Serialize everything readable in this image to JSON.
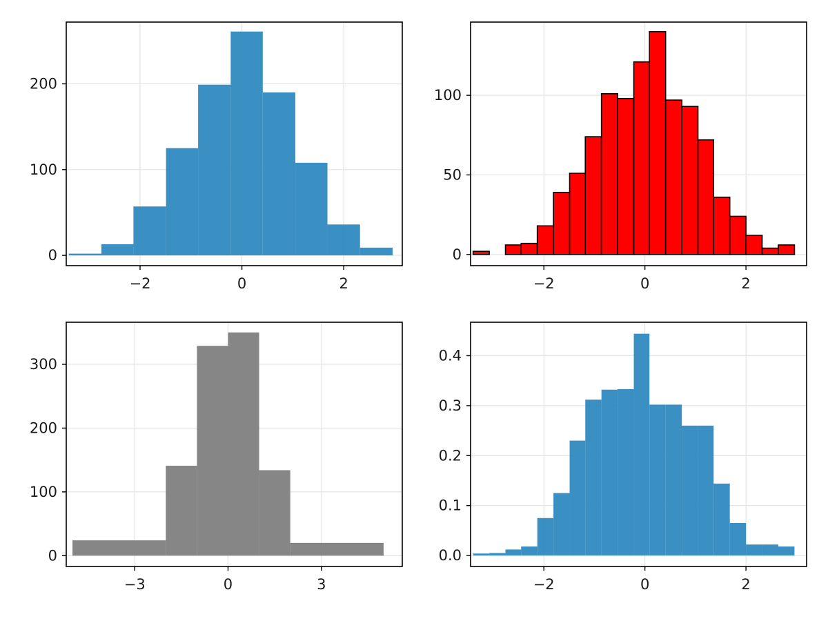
{
  "chart_data": [
    {
      "type": "bar",
      "panel": "top-left",
      "bar_color": "#2f89c0",
      "edge_color": "none",
      "grid": true,
      "xlim": [
        -3.45,
        3.15
      ],
      "ylim": [
        -12,
        272
      ],
      "xticks": [
        -2,
        0,
        2
      ],
      "xtick_labels": [
        "−2",
        "0",
        "2"
      ],
      "yticks": [
        0,
        100,
        200
      ],
      "ytick_labels": [
        "0",
        "100",
        "200"
      ],
      "bin_edges": [
        -3.4,
        -2.76,
        -2.13,
        -1.49,
        -0.86,
        -0.22,
        0.41,
        1.05,
        1.68,
        2.32,
        2.96
      ],
      "values": [
        2,
        13,
        57,
        125,
        199,
        261,
        190,
        108,
        36,
        9
      ]
    },
    {
      "type": "bar",
      "panel": "top-right",
      "bar_color": "#ff0000",
      "edge_color": "#000000",
      "grid": true,
      "xlim": [
        -3.45,
        3.2
      ],
      "ylim": [
        -7,
        146
      ],
      "xticks": [
        -2,
        0,
        2
      ],
      "xtick_labels": [
        "−2",
        "0",
        "2"
      ],
      "yticks": [
        0,
        50,
        100
      ],
      "ytick_labels": [
        "0",
        "50",
        "100"
      ],
      "bin_edges": [
        -3.4,
        -3.08,
        -2.76,
        -2.45,
        -2.13,
        -1.81,
        -1.49,
        -1.18,
        -0.86,
        -0.54,
        -0.22,
        0.09,
        0.41,
        0.73,
        1.05,
        1.36,
        1.68,
        2.0,
        2.32,
        2.64,
        2.96
      ],
      "values": [
        2,
        0,
        6,
        7,
        18,
        39,
        51,
        74,
        101,
        98,
        121,
        140,
        97,
        93,
        72,
        36,
        24,
        12,
        4,
        6
      ]
    },
    {
      "type": "bar",
      "panel": "bottom-left",
      "bar_color": "#808080",
      "edge_color": "none",
      "grid": true,
      "xlim": [
        -5.2,
        5.6
      ],
      "ylim": [
        -17,
        366
      ],
      "xticks": [
        -3,
        0,
        3
      ],
      "xtick_labels": [
        "−3",
        "0",
        "3"
      ],
      "yticks": [
        0,
        100,
        200,
        300
      ],
      "ytick_labels": [
        "0",
        "100",
        "200",
        "300"
      ],
      "bin_edges": [
        -5,
        -2,
        -1,
        0,
        1,
        2,
        5
      ],
      "values": [
        24,
        141,
        329,
        350,
        134,
        20
      ]
    },
    {
      "type": "bar",
      "panel": "bottom-right",
      "bar_color": "#2f89c0",
      "edge_color": "none",
      "grid": true,
      "xlim": [
        -3.45,
        3.2
      ],
      "ylim": [
        -0.022,
        0.467
      ],
      "xticks": [
        -2,
        0,
        2
      ],
      "xtick_labels": [
        "−2",
        "0",
        "2"
      ],
      "yticks": [
        0.0,
        0.1,
        0.2,
        0.3,
        0.4
      ],
      "ytick_labels": [
        "0.0",
        "0.1",
        "0.2",
        "0.3",
        "0.4"
      ],
      "bin_edges": [
        -3.4,
        -3.08,
        -2.76,
        -2.45,
        -2.13,
        -1.81,
        -1.49,
        -1.18,
        -0.86,
        -0.54,
        -0.22,
        0.09,
        0.41,
        0.73,
        1.05,
        1.36,
        1.68,
        2.0,
        2.32,
        2.64,
        2.96
      ],
      "values": [
        0.004,
        0.005,
        0.012,
        0.018,
        0.075,
        0.125,
        0.23,
        0.312,
        0.332,
        0.333,
        0.444,
        0.302,
        0.302,
        0.26,
        0.26,
        0.144,
        0.065,
        0.022,
        0.022,
        0.018
      ]
    }
  ]
}
